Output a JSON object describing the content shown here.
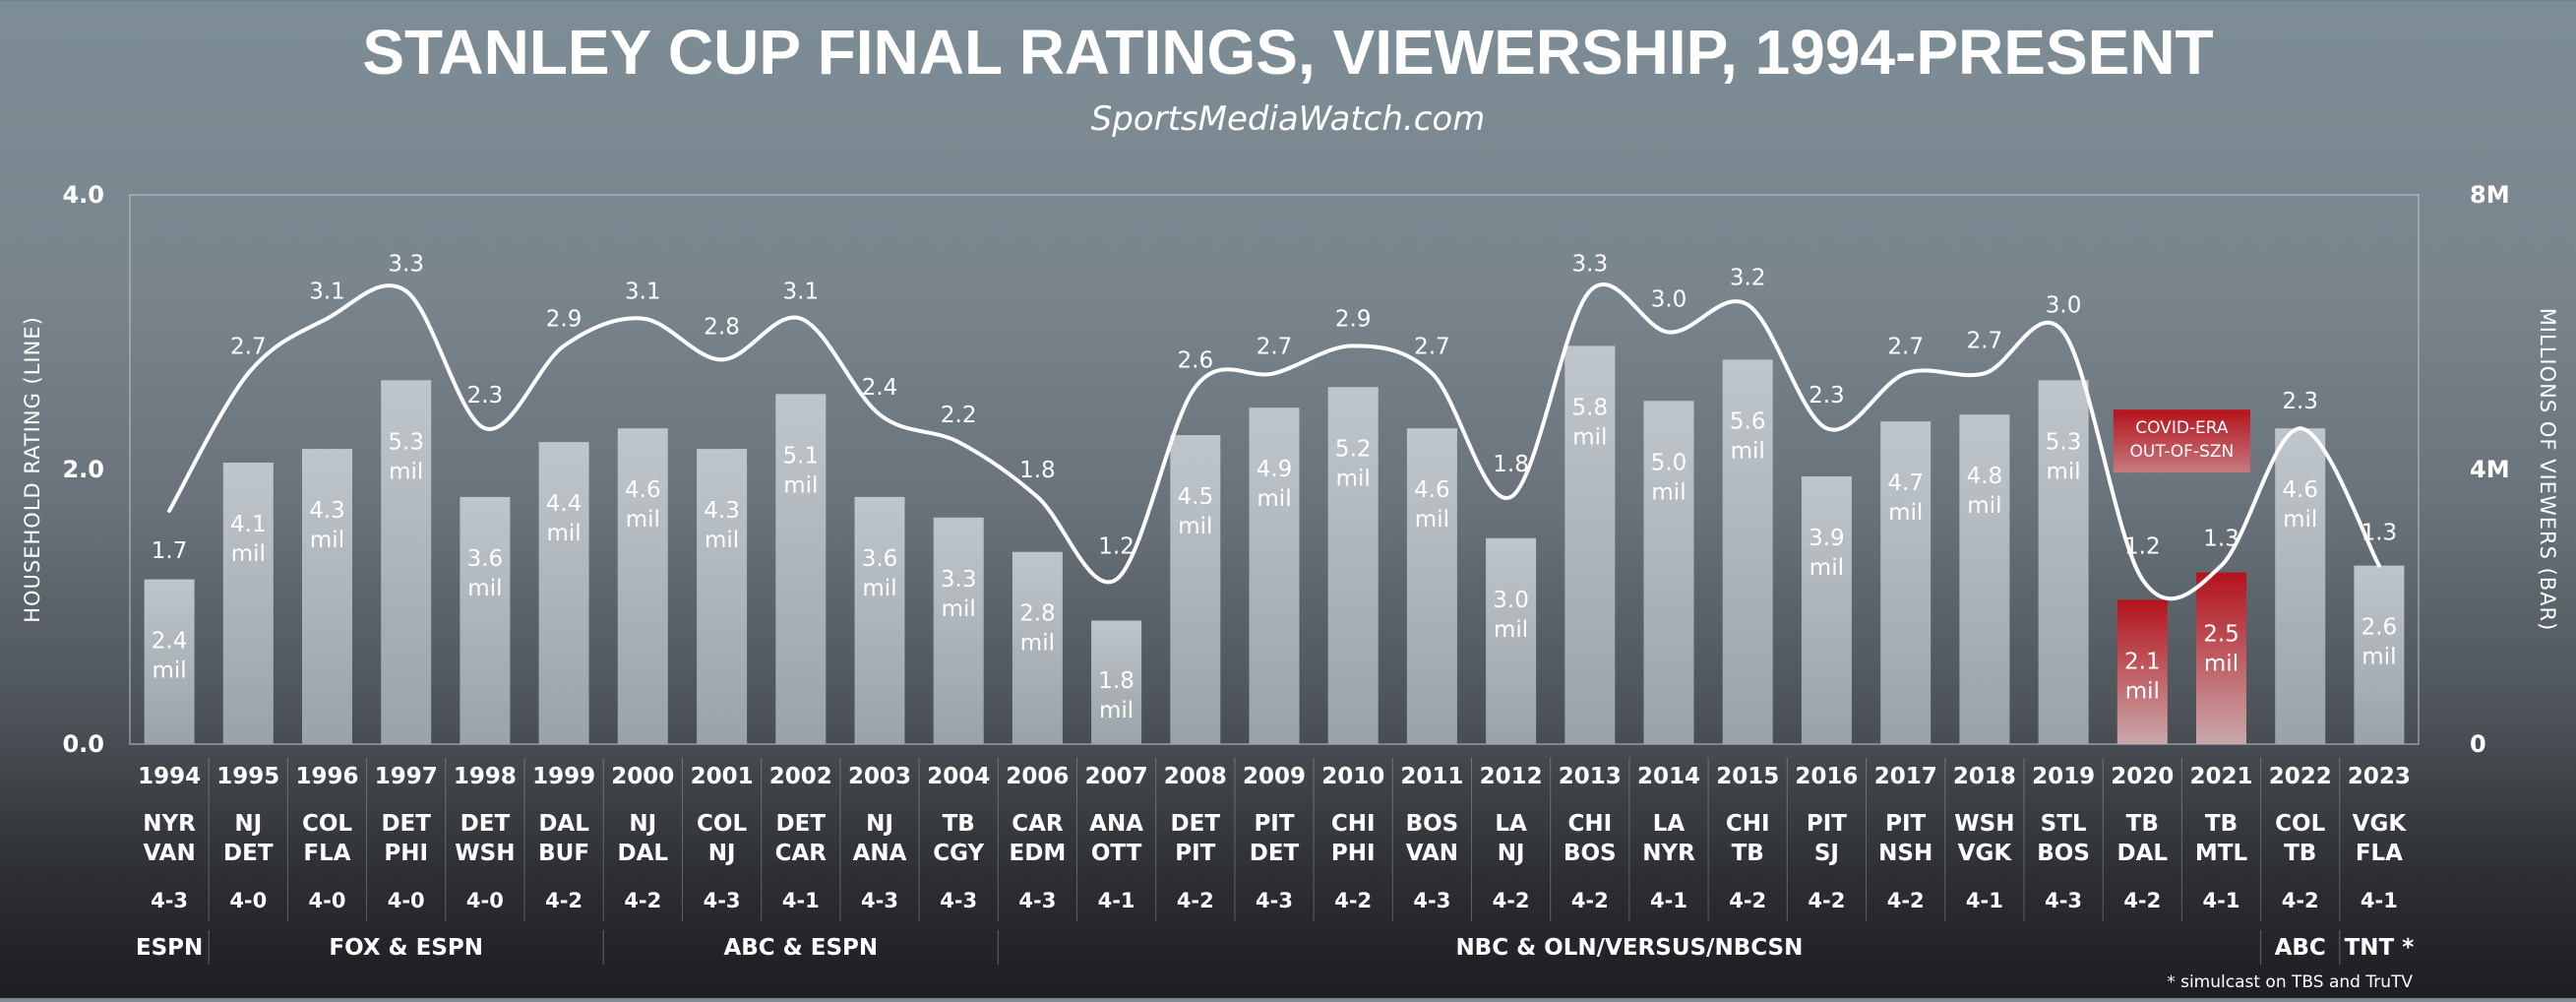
{
  "chart_data": {
    "type": "bar+line",
    "title": "STANLEY CUP FINAL RATINGS, VIEWERSHIP, 1994-PRESENT",
    "subtitle": "SportsMediaWatch.com",
    "left_axis": {
      "label": "HOUSEHOLD RATING (LINE)",
      "range": [
        0,
        4
      ],
      "ticks": [
        "0.0",
        "2.0",
        "4.0"
      ]
    },
    "right_axis": {
      "label": "MILLIONS OF VIEWERS (BAR)",
      "range": [
        0,
        8
      ],
      "ticks": [
        "0",
        "4M",
        "8M"
      ]
    },
    "grid": false,
    "rows": [
      {
        "year": "1994",
        "teams": [
          "NYR",
          "VAN"
        ],
        "series": "4-3",
        "rating": 1.7,
        "rating_label": "1.7",
        "viewers": 2.4,
        "viewers_label": "2.4",
        "unit": "mil"
      },
      {
        "year": "1995",
        "teams": [
          "NJ",
          "DET"
        ],
        "series": "4-0",
        "rating": 2.7,
        "rating_label": "2.7",
        "viewers": 4.1,
        "viewers_label": "4.1",
        "unit": "mil"
      },
      {
        "year": "1996",
        "teams": [
          "COL",
          "FLA"
        ],
        "series": "4-0",
        "rating": 3.1,
        "rating_label": "3.1",
        "viewers": 4.3,
        "viewers_label": "4.3",
        "unit": "mil"
      },
      {
        "year": "1997",
        "teams": [
          "DET",
          "PHI"
        ],
        "series": "4-0",
        "rating": 3.3,
        "rating_label": "3.3",
        "viewers": 5.3,
        "viewers_label": "5.3",
        "unit": "mil"
      },
      {
        "year": "1998",
        "teams": [
          "DET",
          "WSH"
        ],
        "series": "4-0",
        "rating": 2.3,
        "rating_label": "2.3",
        "viewers": 3.6,
        "viewers_label": "3.6",
        "unit": "mil"
      },
      {
        "year": "1999",
        "teams": [
          "DAL",
          "BUF"
        ],
        "series": "4-2",
        "rating": 2.9,
        "rating_label": "2.9",
        "viewers": 4.4,
        "viewers_label": "4.4",
        "unit": "mil"
      },
      {
        "year": "2000",
        "teams": [
          "NJ",
          "DAL"
        ],
        "series": "4-2",
        "rating": 3.1,
        "rating_label": "3.1",
        "viewers": 4.6,
        "viewers_label": "4.6",
        "unit": "mil"
      },
      {
        "year": "2001",
        "teams": [
          "COL",
          "NJ"
        ],
        "series": "4-3",
        "rating": 2.8,
        "rating_label": "2.8",
        "viewers": 4.3,
        "viewers_label": "4.3",
        "unit": "mil"
      },
      {
        "year": "2002",
        "teams": [
          "DET",
          "CAR"
        ],
        "series": "4-1",
        "rating": 3.1,
        "rating_label": "3.1",
        "viewers": 5.1,
        "viewers_label": "5.1",
        "unit": "mil"
      },
      {
        "year": "2003",
        "teams": [
          "NJ",
          "ANA"
        ],
        "series": "4-3",
        "rating": 2.4,
        "rating_label": "2.4",
        "viewers": 3.6,
        "viewers_label": "3.6",
        "unit": "mil"
      },
      {
        "year": "2004",
        "teams": [
          "TB",
          "CGY"
        ],
        "series": "4-3",
        "rating": 2.2,
        "rating_label": "2.2",
        "viewers": 3.3,
        "viewers_label": "3.3",
        "unit": "mil"
      },
      {
        "year": "2006",
        "teams": [
          "CAR",
          "EDM"
        ],
        "series": "4-3",
        "rating": 1.8,
        "rating_label": "1.8",
        "viewers": 2.8,
        "viewers_label": "2.8",
        "unit": "mil"
      },
      {
        "year": "2007",
        "teams": [
          "ANA",
          "OTT"
        ],
        "series": "4-1",
        "rating": 1.2,
        "rating_label": "1.2",
        "viewers": 1.8,
        "viewers_label": "1.8",
        "unit": "mil"
      },
      {
        "year": "2008",
        "teams": [
          "DET",
          "PIT"
        ],
        "series": "4-2",
        "rating": 2.6,
        "rating_label": "2.6",
        "viewers": 4.5,
        "viewers_label": "4.5",
        "unit": "mil"
      },
      {
        "year": "2009",
        "teams": [
          "PIT",
          "DET"
        ],
        "series": "4-3",
        "rating": 2.7,
        "rating_label": "2.7",
        "viewers": 4.9,
        "viewers_label": "4.9",
        "unit": "mil"
      },
      {
        "year": "2010",
        "teams": [
          "CHI",
          "PHI"
        ],
        "series": "4-2",
        "rating": 2.9,
        "rating_label": "2.9",
        "viewers": 5.2,
        "viewers_label": "5.2",
        "unit": "mil"
      },
      {
        "year": "2011",
        "teams": [
          "BOS",
          "VAN"
        ],
        "series": "4-3",
        "rating": 2.7,
        "rating_label": "2.7",
        "viewers": 4.6,
        "viewers_label": "4.6",
        "unit": "mil"
      },
      {
        "year": "2012",
        "teams": [
          "LA",
          "NJ"
        ],
        "series": "4-2",
        "rating": 1.8,
        "rating_label": "1.8",
        "viewers": 3.0,
        "viewers_label": "3.0",
        "unit": "mil"
      },
      {
        "year": "2013",
        "teams": [
          "CHI",
          "BOS"
        ],
        "series": "4-2",
        "rating": 3.3,
        "rating_label": "3.3",
        "viewers": 5.8,
        "viewers_label": "5.8",
        "unit": "mil"
      },
      {
        "year": "2014",
        "teams": [
          "LA",
          "NYR"
        ],
        "series": "4-1",
        "rating": 3.0,
        "rating_label": "3.0",
        "viewers": 5.0,
        "viewers_label": "5.0",
        "unit": "mil"
      },
      {
        "year": "2015",
        "teams": [
          "CHI",
          "TB"
        ],
        "series": "4-2",
        "rating": 3.2,
        "rating_label": "3.2",
        "viewers": 5.6,
        "viewers_label": "5.6",
        "unit": "mil"
      },
      {
        "year": "2016",
        "teams": [
          "PIT",
          "SJ"
        ],
        "series": "4-2",
        "rating": 2.3,
        "rating_label": "2.3",
        "viewers": 3.9,
        "viewers_label": "3.9",
        "unit": "mil"
      },
      {
        "year": "2017",
        "teams": [
          "PIT",
          "NSH"
        ],
        "series": "4-2",
        "rating": 2.7,
        "rating_label": "2.7",
        "viewers": 4.7,
        "viewers_label": "4.7",
        "unit": "mil"
      },
      {
        "year": "2018",
        "teams": [
          "WSH",
          "VGK"
        ],
        "series": "4-1",
        "rating": 2.7,
        "rating_label": "2.7",
        "viewers": 4.8,
        "viewers_label": "4.8",
        "unit": "mil"
      },
      {
        "year": "2019",
        "teams": [
          "STL",
          "BOS"
        ],
        "series": "4-3",
        "rating": 3.0,
        "rating_label": "3.0",
        "viewers": 5.3,
        "viewers_label": "5.3",
        "unit": "mil"
      },
      {
        "year": "2020",
        "teams": [
          "TB",
          "DAL"
        ],
        "series": "4-2",
        "rating": 1.2,
        "rating_label": "1.2",
        "viewers": 2.1,
        "viewers_label": "2.1",
        "unit": "mil",
        "highlight": true
      },
      {
        "year": "2021",
        "teams": [
          "TB",
          "MTL"
        ],
        "series": "4-1",
        "rating": 1.3,
        "rating_label": "1.3",
        "viewers": 2.5,
        "viewers_label": "2.5",
        "unit": "mil",
        "highlight": true
      },
      {
        "year": "2022",
        "teams": [
          "COL",
          "TB"
        ],
        "series": "4-2",
        "rating": 2.3,
        "rating_label": "2.3",
        "viewers": 4.6,
        "viewers_label": "4.6",
        "unit": "mil"
      },
      {
        "year": "2023",
        "teams": [
          "VGK",
          "FLA"
        ],
        "series": "4-1",
        "rating": 1.3,
        "rating_label": "1.3",
        "viewers": 2.6,
        "viewers_label": "2.6",
        "unit": "mil"
      }
    ],
    "networks": [
      {
        "label": "ESPN",
        "from": 0,
        "to": 0
      },
      {
        "label": "FOX & ESPN",
        "from": 1,
        "to": 5
      },
      {
        "label": "ABC & ESPN",
        "from": 6,
        "to": 10
      },
      {
        "label": "NBC & OLN/VERSUS/NBCSN",
        "from": 11,
        "to": 26
      },
      {
        "label": "ABC",
        "from": 27,
        "to": 27
      },
      {
        "label": "TNT *",
        "from": 28,
        "to": 28
      }
    ],
    "annotation": {
      "lines": [
        "COVID-ERA",
        "OUT-OF-SZN"
      ],
      "over": [
        25,
        26
      ]
    },
    "footnote": "* simulcast on TBS and TruTV",
    "colors": {
      "bar": "#b4bcc3",
      "bar_highlight": "#b0151c",
      "line": "#ffffff",
      "text": "#ffffff"
    }
  }
}
